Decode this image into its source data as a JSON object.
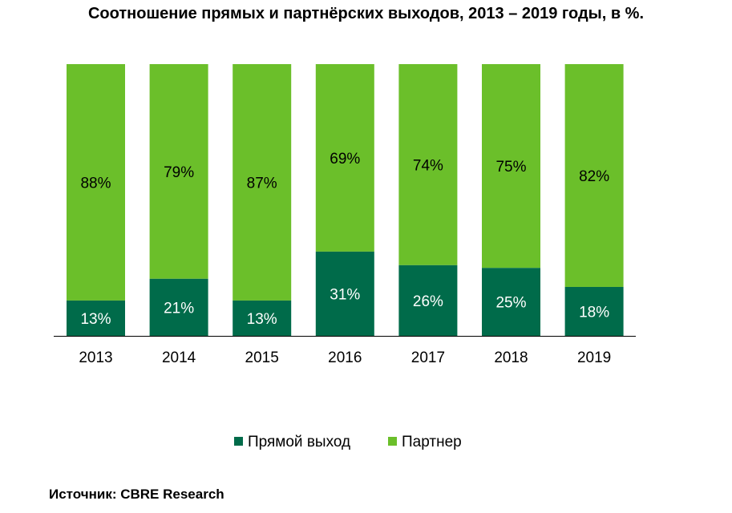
{
  "chart_data": {
    "type": "bar",
    "stacked": true,
    "title": "Соотношение прямых и партнёрских выходов, 2013 – 2019 годы, в %.",
    "categories": [
      "2013",
      "2014",
      "2015",
      "2016",
      "2017",
      "2018",
      "2019"
    ],
    "series": [
      {
        "name": "Прямой выход",
        "color": "#006b4a",
        "values": [
          13,
          21,
          13,
          31,
          26,
          25,
          18
        ]
      },
      {
        "name": "Партнер",
        "color": "#6bbf2a",
        "values": [
          88,
          79,
          87,
          69,
          74,
          75,
          82
        ]
      }
    ],
    "data_labels": {
      "Прямой выход": [
        "13%",
        "21%",
        "13%",
        "31%",
        "26%",
        "25%",
        "18%"
      ],
      "Партнер": [
        "88%",
        "79%",
        "87%",
        "69%",
        "74%",
        "75%",
        "82%"
      ]
    },
    "ylim": [
      0,
      100
    ],
    "grid": false,
    "legend": "bottom"
  },
  "source": "Источник: CBRE Research"
}
